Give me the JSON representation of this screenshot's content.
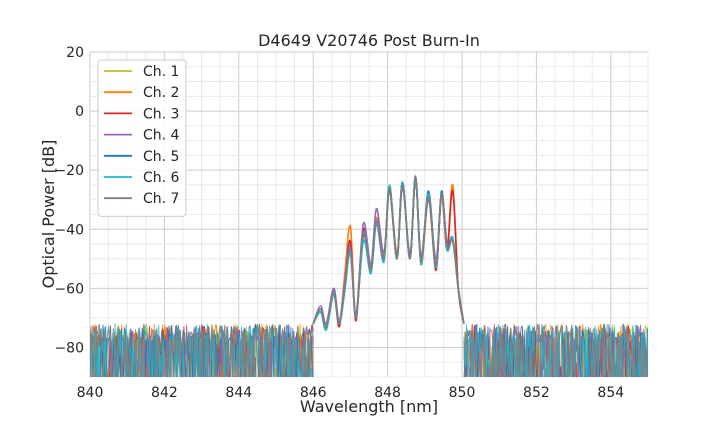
{
  "chart_data": {
    "type": "line",
    "title": "D4649 V20746 Post Burn-In",
    "xlabel": "Wavelength [nm]",
    "ylabel": "Optical Power [dB]",
    "xlim": [
      840,
      855
    ],
    "ylim": [
      -90,
      20
    ],
    "xticks": [
      "840",
      "842",
      "844",
      "846",
      "848",
      "850",
      "852",
      "854"
    ],
    "yticks": [
      "20",
      "0",
      "−20",
      "−40",
      "−60",
      "−80"
    ],
    "grid": true,
    "legend_position": "upper-left",
    "noise_floor_db": -85,
    "series": [
      {
        "name": "Ch. 1",
        "color": "#bcbd22",
        "x": [
          846.0,
          846.2,
          846.35,
          846.55,
          846.7,
          846.85,
          847.0,
          847.15,
          847.35,
          847.55,
          847.7,
          847.9,
          848.05,
          848.25,
          848.4,
          848.6,
          848.75,
          848.9,
          849.1,
          849.3,
          849.45,
          849.6,
          849.75,
          849.9,
          850.05
        ],
        "y": [
          -72,
          -68,
          -74,
          -62,
          -72,
          -60,
          -45,
          -70,
          -42,
          -55,
          -36,
          -50,
          -27,
          -50,
          -25,
          -49,
          -23,
          -50,
          -28,
          -52,
          -29,
          -45,
          -44,
          -60,
          -72
        ]
      },
      {
        "name": "Ch. 2",
        "color": "#ff7f0e",
        "x": [
          846.0,
          846.2,
          846.35,
          846.55,
          846.7,
          846.85,
          847.0,
          847.15,
          847.35,
          847.55,
          847.7,
          847.9,
          848.05,
          848.25,
          848.4,
          848.6,
          848.75,
          848.9,
          849.1,
          849.3,
          849.45,
          849.6,
          849.75,
          849.9,
          850.05
        ],
        "y": [
          -72,
          -67,
          -73,
          -60,
          -72,
          -55,
          -39,
          -70,
          -40,
          -53,
          -36,
          -49,
          -25,
          -48,
          -24,
          -49,
          -23,
          -52,
          -30,
          -53,
          -29,
          -46,
          -25,
          -60,
          -72
        ]
      },
      {
        "name": "Ch. 3",
        "color": "#d62728",
        "x": [
          846.0,
          846.2,
          846.35,
          846.55,
          846.7,
          846.85,
          847.0,
          847.15,
          847.35,
          847.55,
          847.7,
          847.9,
          848.05,
          848.25,
          848.4,
          848.6,
          848.75,
          848.9,
          849.1,
          849.3,
          849.45,
          849.6,
          849.75,
          849.9,
          850.05
        ],
        "y": [
          -72,
          -68,
          -74,
          -62,
          -73,
          -58,
          -44,
          -71,
          -40,
          -54,
          -37,
          -50,
          -26,
          -49,
          -24,
          -50,
          -23,
          -51,
          -29,
          -54,
          -28,
          -47,
          -27,
          -60,
          -72
        ]
      },
      {
        "name": "Ch. 4",
        "color": "#9467bd",
        "x": [
          846.0,
          846.2,
          846.35,
          846.55,
          846.7,
          846.85,
          847.0,
          847.15,
          847.35,
          847.55,
          847.7,
          847.9,
          848.05,
          848.25,
          848.4,
          848.6,
          848.75,
          848.9,
          849.1,
          849.3,
          849.45,
          849.6,
          849.75,
          849.9,
          850.05
        ],
        "y": [
          -72,
          -66,
          -72,
          -60,
          -71,
          -58,
          -46,
          -69,
          -38,
          -52,
          -33,
          -48,
          -27,
          -49,
          -26,
          -48,
          -24,
          -49,
          -30,
          -50,
          -28,
          -45,
          -43,
          -60,
          -72
        ]
      },
      {
        "name": "Ch. 5",
        "color": "#1f77b4",
        "x": [
          846.0,
          846.2,
          846.35,
          846.55,
          846.7,
          846.85,
          847.0,
          847.15,
          847.35,
          847.55,
          847.7,
          847.9,
          848.05,
          848.25,
          848.4,
          848.6,
          848.75,
          848.9,
          849.1,
          849.3,
          849.45,
          849.6,
          849.75,
          849.9,
          850.05
        ],
        "y": [
          -72,
          -67,
          -73,
          -61,
          -72,
          -60,
          -47,
          -70,
          -42,
          -54,
          -38,
          -51,
          -26,
          -50,
          -24,
          -50,
          -22,
          -51,
          -27,
          -52,
          -27,
          -46,
          -43,
          -60,
          -72
        ]
      },
      {
        "name": "Ch. 6",
        "color": "#17becf",
        "x": [
          846.0,
          846.2,
          846.35,
          846.55,
          846.7,
          846.85,
          847.0,
          847.15,
          847.35,
          847.55,
          847.7,
          847.9,
          848.05,
          848.25,
          848.4,
          848.6,
          848.75,
          848.9,
          849.1,
          849.3,
          849.45,
          849.6,
          849.75,
          849.9,
          850.05
        ],
        "y": [
          -72,
          -68,
          -74,
          -62,
          -72,
          -61,
          -48,
          -70,
          -44,
          -55,
          -38,
          -51,
          -25,
          -50,
          -24,
          -50,
          -23,
          -52,
          -28,
          -53,
          -28,
          -47,
          -43,
          -60,
          -72
        ]
      },
      {
        "name": "Ch. 7",
        "color": "#7f7f7f",
        "x": [
          846.0,
          846.2,
          846.35,
          846.55,
          846.7,
          846.85,
          847.0,
          847.15,
          847.35,
          847.55,
          847.7,
          847.9,
          848.05,
          848.25,
          848.4,
          848.6,
          848.75,
          848.9,
          849.1,
          849.3,
          849.45,
          849.6,
          849.75,
          849.9,
          850.05
        ],
        "y": [
          -72,
          -67,
          -73,
          -61,
          -72,
          -59,
          -47,
          -70,
          -41,
          -54,
          -37,
          -50,
          -26,
          -50,
          -25,
          -50,
          -22,
          -51,
          -29,
          -52,
          -28,
          -46,
          -44,
          -60,
          -72
        ]
      }
    ]
  }
}
